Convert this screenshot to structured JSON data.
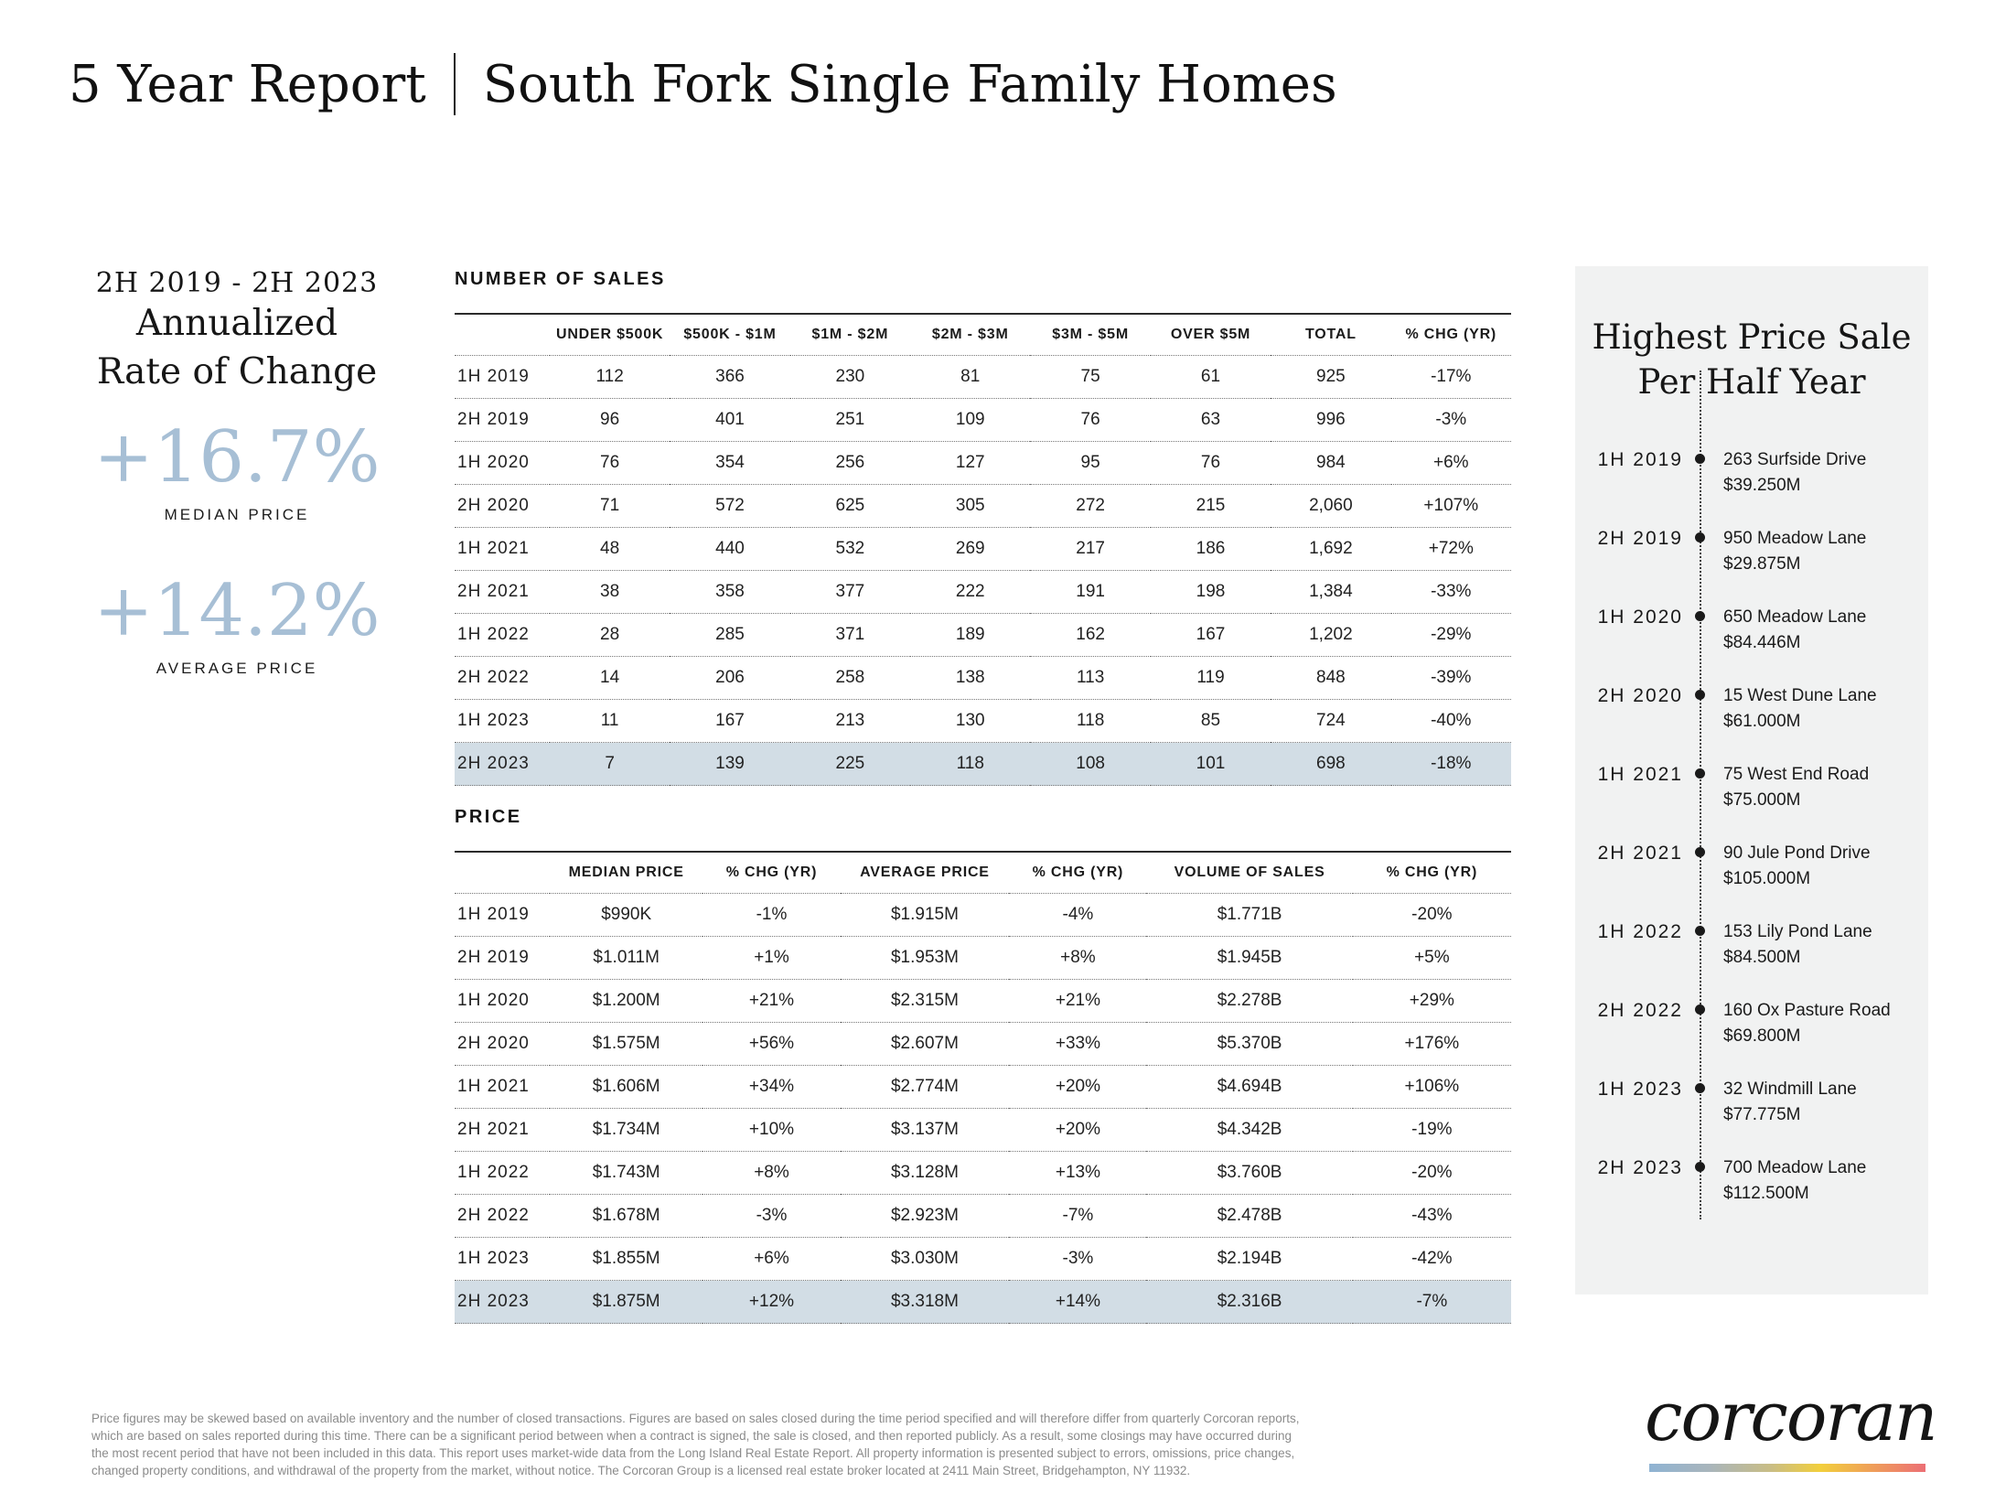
{
  "title": {
    "part1": "5 Year Report",
    "part2": "South Fork Single Family Homes"
  },
  "stats": {
    "period": "2H 2019 - 2H 2023",
    "heading_line1": "Annualized",
    "heading_line2": "Rate of Change",
    "median": {
      "value": "+16.7%",
      "label": "MEDIAN PRICE"
    },
    "average": {
      "value": "+14.2%",
      "label": "AVERAGE PRICE"
    }
  },
  "number_of_sales": {
    "section_title": "NUMBER OF SALES",
    "headers": [
      "",
      "UNDER $500K",
      "$500K - $1M",
      "$1M - $2M",
      "$2M - $3M",
      "$3M - $5M",
      "OVER $5M",
      "TOTAL",
      "% CHG (YR)"
    ],
    "rows": [
      [
        "1H 2019",
        "112",
        "366",
        "230",
        "81",
        "75",
        "61",
        "925",
        "-17%"
      ],
      [
        "2H 2019",
        "96",
        "401",
        "251",
        "109",
        "76",
        "63",
        "996",
        "-3%"
      ],
      [
        "1H 2020",
        "76",
        "354",
        "256",
        "127",
        "95",
        "76",
        "984",
        "+6%"
      ],
      [
        "2H 2020",
        "71",
        "572",
        "625",
        "305",
        "272",
        "215",
        "2,060",
        "+107%"
      ],
      [
        "1H 2021",
        "48",
        "440",
        "532",
        "269",
        "217",
        "186",
        "1,692",
        "+72%"
      ],
      [
        "2H 2021",
        "38",
        "358",
        "377",
        "222",
        "191",
        "198",
        "1,384",
        "-33%"
      ],
      [
        "1H 2022",
        "28",
        "285",
        "371",
        "189",
        "162",
        "167",
        "1,202",
        "-29%"
      ],
      [
        "2H 2022",
        "14",
        "206",
        "258",
        "138",
        "113",
        "119",
        "848",
        "-39%"
      ],
      [
        "1H 2023",
        "11",
        "167",
        "213",
        "130",
        "118",
        "85",
        "724",
        "-40%"
      ],
      [
        "2H 2023",
        "7",
        "139",
        "225",
        "118",
        "108",
        "101",
        "698",
        "-18%"
      ]
    ],
    "highlight_row_index": 9
  },
  "price": {
    "section_title": "PRICE",
    "headers": [
      "",
      "MEDIAN PRICE",
      "% CHG (YR)",
      "AVERAGE PRICE",
      "% CHG (YR)",
      "VOLUME OF SALES",
      "% CHG (YR)"
    ],
    "rows": [
      [
        "1H 2019",
        "$990K",
        "-1%",
        "$1.915M",
        "-4%",
        "$1.771B",
        "-20%"
      ],
      [
        "2H 2019",
        "$1.011M",
        "+1%",
        "$1.953M",
        "+8%",
        "$1.945B",
        "+5%"
      ],
      [
        "1H 2020",
        "$1.200M",
        "+21%",
        "$2.315M",
        "+21%",
        "$2.278B",
        "+29%"
      ],
      [
        "2H 2020",
        "$1.575M",
        "+56%",
        "$2.607M",
        "+33%",
        "$5.370B",
        "+176%"
      ],
      [
        "1H 2021",
        "$1.606M",
        "+34%",
        "$2.774M",
        "+20%",
        "$4.694B",
        "+106%"
      ],
      [
        "2H 2021",
        "$1.734M",
        "+10%",
        "$3.137M",
        "+20%",
        "$4.342B",
        "-19%"
      ],
      [
        "1H 2022",
        "$1.743M",
        "+8%",
        "$3.128M",
        "+13%",
        "$3.760B",
        "-20%"
      ],
      [
        "2H 2022",
        "$1.678M",
        "-3%",
        "$2.923M",
        "-7%",
        "$2.478B",
        "-43%"
      ],
      [
        "1H 2023",
        "$1.855M",
        "+6%",
        "$3.030M",
        "-3%",
        "$2.194B",
        "-42%"
      ],
      [
        "2H 2023",
        "$1.875M",
        "+12%",
        "$3.318M",
        "+14%",
        "$2.316B",
        "-7%"
      ]
    ],
    "highlight_row_index": 9
  },
  "highest_price": {
    "title_line1": "Highest Price Sale",
    "title_line2": "Per Half Year",
    "items": [
      {
        "period": "1H 2019",
        "address": "263 Surfside Drive",
        "price": "$39.250M"
      },
      {
        "period": "2H 2019",
        "address": "950 Meadow Lane",
        "price": "$29.875M"
      },
      {
        "period": "1H 2020",
        "address": "650 Meadow Lane",
        "price": "$84.446M"
      },
      {
        "period": "2H 2020",
        "address": "15 West Dune Lane",
        "price": "$61.000M"
      },
      {
        "period": "1H 2021",
        "address": "75 West End Road",
        "price": "$75.000M"
      },
      {
        "period": "2H 2021",
        "address": "90 Jule Pond Drive",
        "price": "$105.000M"
      },
      {
        "period": "1H 2022",
        "address": "153 Lily Pond Lane",
        "price": "$84.500M"
      },
      {
        "period": "2H 2022",
        "address": "160 Ox Pasture Road",
        "price": "$69.800M"
      },
      {
        "period": "1H 2023",
        "address": "32 Windmill Lane",
        "price": "$77.775M"
      },
      {
        "period": "2H 2023",
        "address": "700 Meadow Lane",
        "price": "$112.500M"
      }
    ]
  },
  "footer": {
    "lines": [
      "Price figures may be skewed based on available inventory and the number of closed transactions. Figures are based on sales closed during the time period specified and will therefore differ from quarterly Corcoran reports,",
      "which are based on sales reported during this time. There can be a significant period between when a contract is signed, the sale is closed, and then reported publicly. As a result, some closings may have occurred during",
      "the most recent period that have not been included in this data. This report uses market-wide data from the Long Island Real Estate Report. All property information is presented subject to errors, omissions, price changes,",
      "changed property conditions, and withdrawal of the property from the market, without notice. The Corcoran Group is a licensed real estate broker located at 2411 Main Street, Bridgehampton, NY 11932."
    ]
  },
  "logo": {
    "text": "corcoran"
  },
  "colors": {
    "accent_blue": "#a7bfd5",
    "highlight_row": "#d2dde5",
    "panel_background": "#f1f2f2",
    "gradient_bar": [
      "#8fb3d3",
      "#f2cf3c",
      "#ec6f75"
    ]
  }
}
